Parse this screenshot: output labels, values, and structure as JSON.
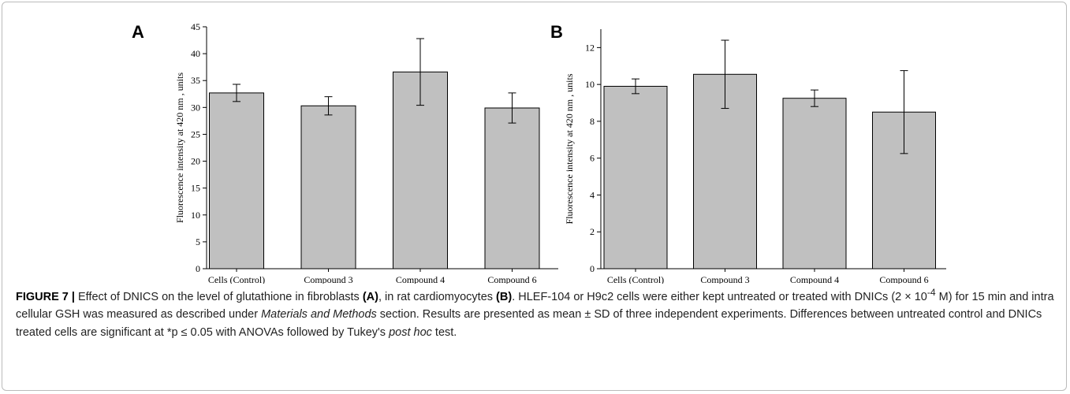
{
  "chart_data": [
    {
      "type": "bar",
      "panel": "A",
      "ylabel": "Fluorescence intensity at 420 nm , units",
      "categories": [
        "Cells (Control)",
        "Compound 3",
        "Compound 4",
        "Compound 6"
      ],
      "values": [
        32.7,
        30.3,
        36.6,
        29.9
      ],
      "errors": [
        1.6,
        1.7,
        6.2,
        2.8
      ],
      "color": "#c0c0c0",
      "ylim": [
        0,
        45
      ],
      "yticks": [
        0,
        5,
        10,
        15,
        20,
        25,
        30,
        35,
        40,
        45
      ]
    },
    {
      "type": "bar",
      "panel": "B",
      "ylabel": "Fluorescence intensity at 420 nm , units",
      "categories": [
        "Cells (Control)",
        "Compound 3",
        "Compound 4",
        "Compound 6"
      ],
      "values": [
        9.9,
        10.55,
        9.25,
        8.5
      ],
      "errors": [
        0.4,
        1.85,
        0.45,
        2.25
      ],
      "color": "#c0c0c0",
      "ylim": [
        0,
        13
      ],
      "yticks": [
        0,
        2,
        4,
        6,
        8,
        10,
        12
      ]
    }
  ],
  "caption": {
    "parts": [
      "FIGURE 7 |",
      " Effect of DNICS on the level of glutathione in fibroblasts ",
      "(A)",
      ", in rat cardiomyocytes ",
      "(B)",
      ". HLEF-104 or H9c2 cells were either kept untreated or treated with DNICs (2 × 10",
      "-4",
      " M) for 15 min and intra cellular GSH was measured as described under ",
      "Materials and Methods",
      " section. Results are presented as mean ± SD of three independent experiments. Differences between untreated control and DNICs treated cells are significant at *p ≤ 0.05 with ANOVAs followed by Tukey's ",
      "post hoc",
      " test."
    ]
  }
}
